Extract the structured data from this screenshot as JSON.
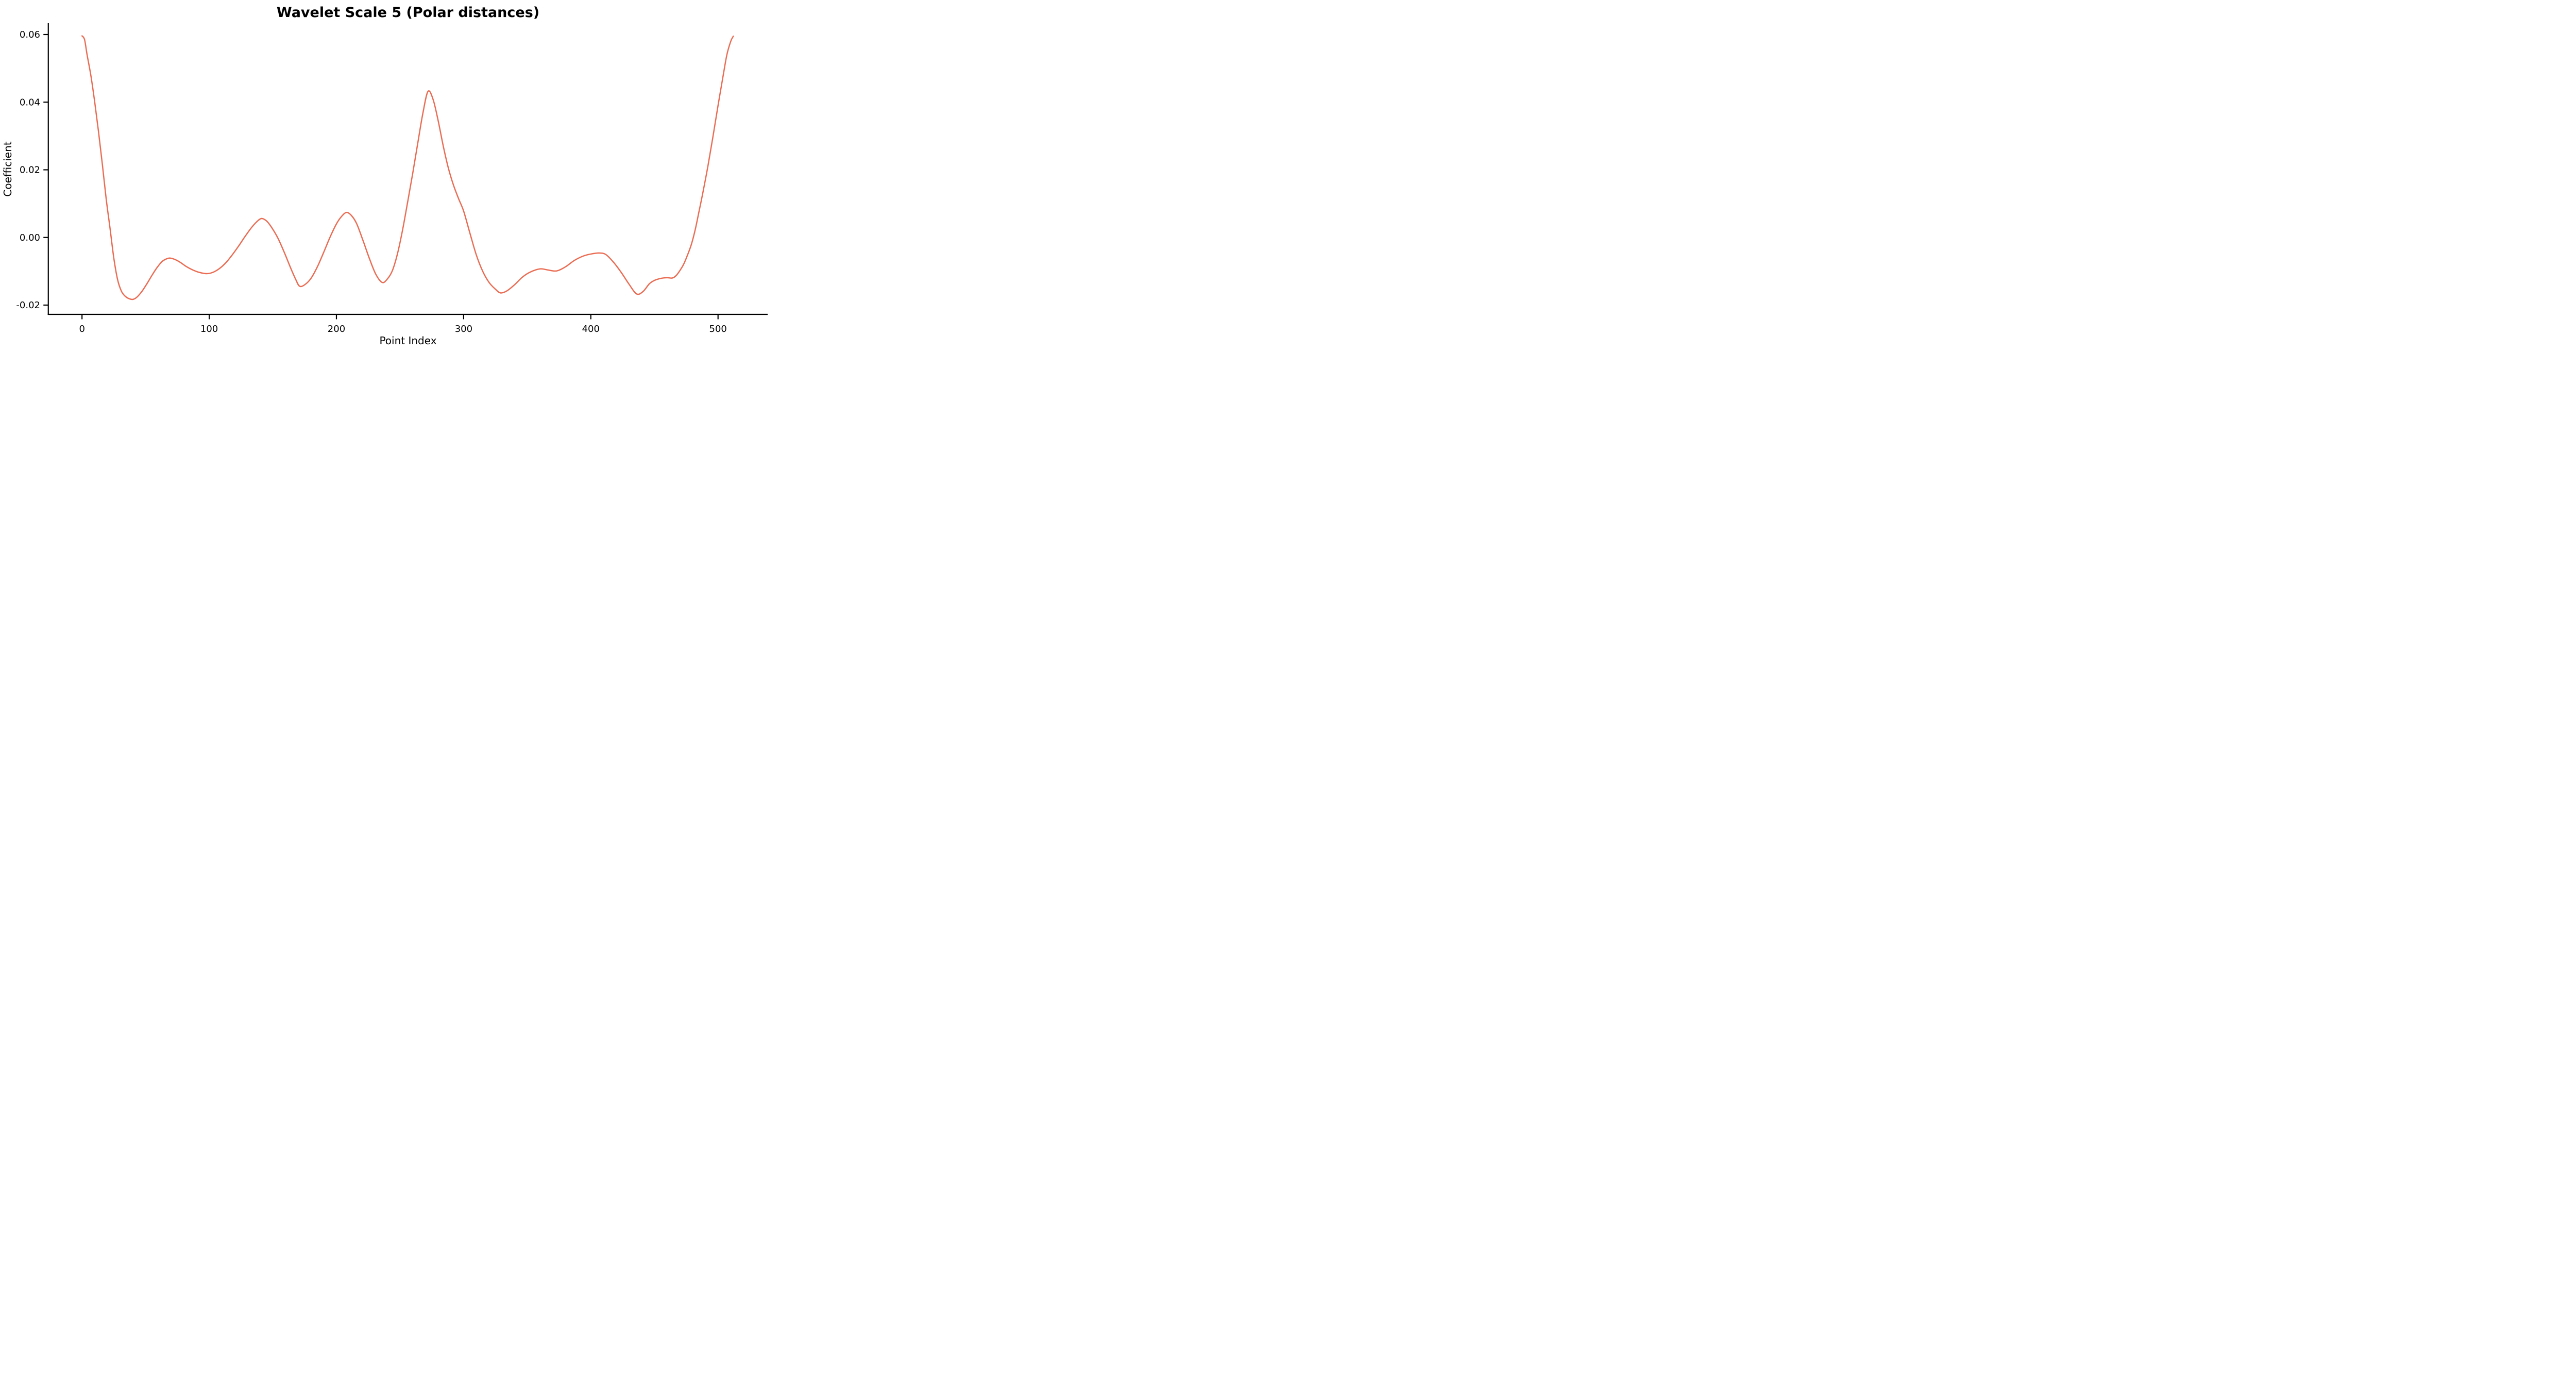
{
  "chart_data": {
    "type": "line",
    "title": "Wavelet Scale 5 (Polar distances)",
    "xlabel": "Point Index",
    "ylabel": "Coefficient",
    "line_color": "#EA6C53",
    "axis_color": "#000000",
    "background_color": "#FFFFFF",
    "grid": false,
    "legend": null,
    "xlim": [
      -26.5,
      539
    ],
    "ylim": [
      -0.02274,
      0.06335
    ],
    "x_ticks": [
      0,
      100,
      200,
      300,
      400,
      500
    ],
    "x_tick_labels": [
      "0",
      "100",
      "200",
      "300",
      "400",
      "500"
    ],
    "y_ticks": [
      -0.02,
      0.0,
      0.02,
      0.04,
      0.06
    ],
    "y_tick_labels": [
      "-0.02",
      "0.00",
      "0.02",
      "0.04",
      "0.06"
    ],
    "x": [
      0,
      2,
      4,
      7,
      10,
      13,
      16,
      19,
      22,
      25,
      28,
      31,
      34,
      37,
      40,
      43,
      47,
      51,
      55,
      59,
      63,
      66,
      69,
      73,
      77,
      82,
      87,
      92,
      98,
      103,
      108,
      113,
      118,
      123,
      128,
      133,
      137,
      141,
      145,
      149,
      154,
      159,
      164,
      168,
      171,
      175,
      180,
      185,
      190,
      195,
      200,
      204,
      208,
      212,
      216,
      221,
      226,
      231,
      236,
      240,
      244,
      248,
      252,
      256,
      260,
      264,
      268,
      272,
      276,
      280,
      284,
      288,
      292,
      296,
      300,
      305,
      310,
      315,
      320,
      325,
      329,
      334,
      340,
      346,
      352,
      360,
      366,
      373,
      380,
      387,
      394,
      400,
      407,
      412,
      418,
      424,
      430,
      436,
      441,
      446,
      450,
      455,
      460,
      464,
      467,
      470,
      473,
      476,
      479,
      482,
      485,
      488,
      492,
      496,
      500,
      504,
      507,
      510,
      512
    ],
    "y": [
      0.0596,
      0.0585,
      0.054,
      0.0478,
      0.04,
      0.0312,
      0.0216,
      0.0114,
      0.0028,
      -0.0061,
      -0.0125,
      -0.0159,
      -0.0174,
      -0.0181,
      -0.0183,
      -0.0177,
      -0.016,
      -0.0137,
      -0.0112,
      -0.0089,
      -0.0071,
      -0.0064,
      -0.0061,
      -0.0065,
      -0.0073,
      -0.0086,
      -0.0096,
      -0.0103,
      -0.0107,
      -0.0103,
      -0.0092,
      -0.0075,
      -0.0052,
      -0.0026,
      0.0002,
      0.0028,
      0.0045,
      0.0056,
      0.0049,
      0.003,
      -0.0002,
      -0.0044,
      -0.009,
      -0.0124,
      -0.0144,
      -0.014,
      -0.0121,
      -0.0087,
      -0.0044,
      0.0001,
      0.004,
      0.0062,
      0.0074,
      0.0064,
      0.004,
      -0.001,
      -0.0063,
      -0.0109,
      -0.0133,
      -0.0123,
      -0.0098,
      -0.0048,
      0.0022,
      0.0105,
      0.019,
      0.028,
      0.0368,
      0.0432,
      0.0408,
      0.0345,
      0.027,
      0.0205,
      0.0155,
      0.0115,
      0.0078,
      0.0012,
      -0.0052,
      -0.01,
      -0.0133,
      -0.0153,
      -0.0164,
      -0.0158,
      -0.014,
      -0.0118,
      -0.0103,
      -0.0093,
      -0.0096,
      -0.0099,
      -0.0087,
      -0.0068,
      -0.0055,
      -0.0049,
      -0.0046,
      -0.0051,
      -0.0074,
      -0.0104,
      -0.0138,
      -0.0167,
      -0.016,
      -0.0137,
      -0.0127,
      -0.0121,
      -0.0119,
      -0.012,
      -0.0113,
      -0.0098,
      -0.0079,
      -0.0052,
      -0.0021,
      0.0022,
      0.0076,
      0.0131,
      0.021,
      0.0298,
      0.039,
      0.0478,
      0.0541,
      0.058,
      0.0595
    ]
  }
}
